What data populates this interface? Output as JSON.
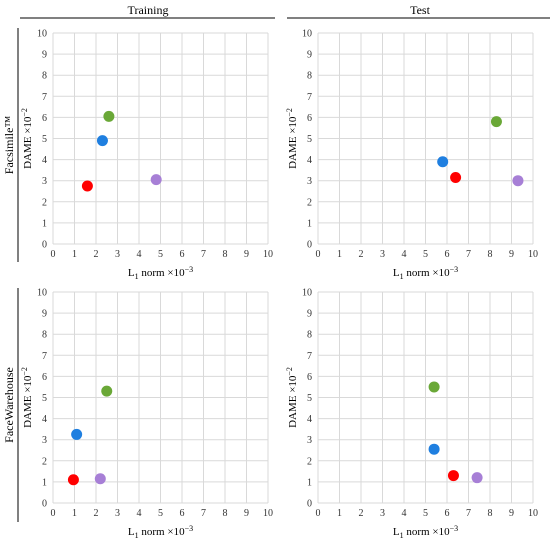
{
  "columns": [
    "Training",
    "Test"
  ],
  "rows": [
    "Facsimile™",
    "FaceWarehouse"
  ],
  "axis_labels": {
    "y": {
      "main": "DAME ×10",
      "exp": "−2"
    },
    "x": {
      "main": "L",
      "sub": "1",
      "rest": " norm ×10",
      "exp": "−3"
    }
  },
  "colors": {
    "red": "#ff0000",
    "blue": "#1f7fe0",
    "green": "#6aa837",
    "purple": "#a77fd6",
    "grid": "#d9d9d9",
    "tick": "#333333"
  },
  "chart_data": [
    {
      "type": "scatter",
      "panel": "Facsimile™ / Training",
      "xlabel": "L1 norm ×10^-3",
      "ylabel": "DAME ×10^-2",
      "xlim": [
        0,
        10
      ],
      "ylim": [
        0,
        10
      ],
      "xticks": [
        "0",
        "1",
        "2",
        "3",
        "4",
        "5",
        "6",
        "7",
        "8",
        "9",
        "10"
      ],
      "yticks": [
        "0",
        "1",
        "2",
        "3",
        "4",
        "5",
        "6",
        "7",
        "8",
        "9",
        "10"
      ],
      "grid": true,
      "points": [
        {
          "x": 1.6,
          "y": 2.75,
          "color": "#ff0000"
        },
        {
          "x": 2.3,
          "y": 4.9,
          "color": "#1f7fe0"
        },
        {
          "x": 2.6,
          "y": 6.05,
          "color": "#6aa837"
        },
        {
          "x": 4.8,
          "y": 3.05,
          "color": "#a77fd6"
        }
      ]
    },
    {
      "type": "scatter",
      "panel": "Facsimile™ / Test",
      "xlabel": "L1 norm ×10^-3",
      "ylabel": "DAME ×10^-2",
      "xlim": [
        0,
        10
      ],
      "ylim": [
        0,
        10
      ],
      "xticks": [
        "0",
        "1",
        "2",
        "3",
        "4",
        "5",
        "6",
        "7",
        "8",
        "9",
        "10"
      ],
      "yticks": [
        "0",
        "1",
        "2",
        "3",
        "4",
        "5",
        "6",
        "7",
        "8",
        "9",
        "10"
      ],
      "grid": true,
      "points": [
        {
          "x": 6.4,
          "y": 3.15,
          "color": "#ff0000"
        },
        {
          "x": 5.8,
          "y": 3.9,
          "color": "#1f7fe0"
        },
        {
          "x": 8.3,
          "y": 5.8,
          "color": "#6aa837"
        },
        {
          "x": 9.3,
          "y": 3.0,
          "color": "#a77fd6"
        }
      ]
    },
    {
      "type": "scatter",
      "panel": "FaceWarehouse / Training",
      "xlabel": "L1 norm ×10^-3",
      "ylabel": "DAME ×10^-2",
      "xlim": [
        0,
        10
      ],
      "ylim": [
        0,
        10
      ],
      "xticks": [
        "0",
        "1",
        "2",
        "3",
        "4",
        "5",
        "6",
        "7",
        "8",
        "9",
        "10"
      ],
      "yticks": [
        "0",
        "1",
        "2",
        "3",
        "4",
        "5",
        "6",
        "7",
        "8",
        "9",
        "10"
      ],
      "grid": true,
      "points": [
        {
          "x": 0.95,
          "y": 1.1,
          "color": "#ff0000"
        },
        {
          "x": 1.1,
          "y": 3.25,
          "color": "#1f7fe0"
        },
        {
          "x": 2.5,
          "y": 5.3,
          "color": "#6aa837"
        },
        {
          "x": 2.2,
          "y": 1.15,
          "color": "#a77fd6"
        }
      ]
    },
    {
      "type": "scatter",
      "panel": "FaceWarehouse / Test",
      "xlabel": "L1 norm ×10^-3",
      "ylabel": "DAME ×10^-2",
      "xlim": [
        0,
        10
      ],
      "ylim": [
        0,
        10
      ],
      "xticks": [
        "0",
        "1",
        "2",
        "3",
        "4",
        "5",
        "6",
        "7",
        "8",
        "9",
        "10"
      ],
      "yticks": [
        "0",
        "1",
        "2",
        "3",
        "4",
        "5",
        "6",
        "7",
        "8",
        "9",
        "10"
      ],
      "grid": true,
      "points": [
        {
          "x": 6.3,
          "y": 1.3,
          "color": "#ff0000"
        },
        {
          "x": 5.4,
          "y": 2.55,
          "color": "#1f7fe0"
        },
        {
          "x": 5.4,
          "y": 5.5,
          "color": "#6aa837"
        },
        {
          "x": 7.4,
          "y": 1.2,
          "color": "#a77fd6"
        }
      ]
    }
  ]
}
